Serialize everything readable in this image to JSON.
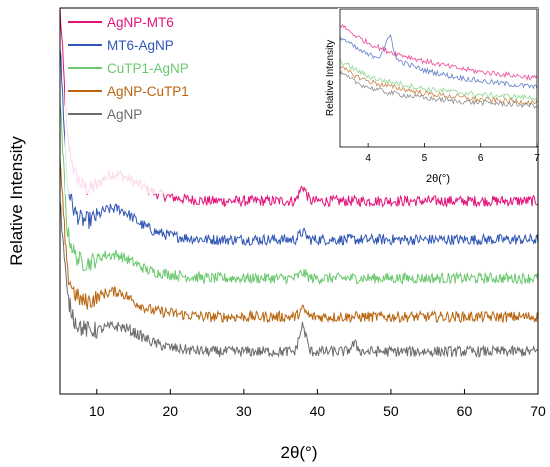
{
  "chart_data": {
    "type": "line",
    "xlabel": "2θ(°)",
    "ylabel": "Relative Intensity",
    "xlim": [
      5,
      70
    ],
    "x_ticks": [
      10,
      20,
      30,
      40,
      50,
      60,
      70
    ],
    "y_ticks_shown": false,
    "legend_position": "top-left",
    "series": [
      {
        "name": "AgNP-MT6",
        "color": "#e3137a",
        "x": [
          5,
          6,
          7,
          8,
          9,
          10,
          11,
          12,
          13,
          14,
          15,
          16,
          17,
          18,
          20,
          22,
          25,
          30,
          35,
          37,
          38,
          39,
          40,
          45,
          50,
          55,
          60,
          65,
          70
        ],
        "y": [
          100,
          66,
          57,
          54,
          53,
          54,
          56,
          57,
          57,
          56,
          55,
          54,
          53,
          52,
          51,
          50.5,
          50,
          50,
          50,
          50,
          54,
          50,
          50,
          50,
          50,
          50,
          50,
          50,
          50
        ]
      },
      {
        "name": "MT6-AgNP",
        "color": "#3055b5",
        "x": [
          5,
          6,
          7,
          8,
          9,
          10,
          11,
          12,
          13,
          14,
          15,
          16,
          17,
          18,
          20,
          22,
          25,
          30,
          35,
          37,
          38,
          39,
          40,
          45,
          50,
          55,
          60,
          65,
          70
        ],
        "y": [
          90,
          54,
          47,
          45,
          45,
          46,
          47.5,
          48,
          48,
          47,
          45.5,
          44,
          43,
          42,
          41,
          40.5,
          40,
          40,
          40,
          40,
          42,
          40,
          40,
          40,
          40,
          40,
          40,
          40,
          40
        ]
      },
      {
        "name": "CuTP1-AgNP",
        "color": "#6cc970",
        "x": [
          5,
          6,
          7,
          8,
          9,
          10,
          11,
          12,
          13,
          14,
          15,
          16,
          17,
          18,
          20,
          22,
          25,
          30,
          35,
          37,
          38,
          39,
          40,
          45,
          50,
          55,
          60,
          65,
          70
        ],
        "y": [
          75,
          42,
          36,
          34,
          34,
          35,
          36,
          36,
          36,
          35,
          34,
          33,
          32,
          31.5,
          31,
          30.5,
          30,
          30,
          30,
          30,
          31.5,
          30,
          30,
          30,
          30,
          30,
          30,
          30,
          30
        ]
      },
      {
        "name": "AgNP-CuTP1",
        "color": "#b8650f",
        "x": [
          5,
          6,
          7,
          8,
          9,
          10,
          11,
          12,
          13,
          14,
          15,
          16,
          17,
          18,
          20,
          22,
          25,
          30,
          35,
          37,
          38,
          39,
          40,
          45,
          50,
          55,
          60,
          65,
          70
        ],
        "y": [
          60,
          31,
          26,
          24,
          24,
          25,
          26,
          26.5,
          26.5,
          25.5,
          24,
          23,
          22,
          21.5,
          21,
          20.5,
          20,
          20,
          20,
          20,
          22,
          20,
          20,
          20,
          20,
          20,
          20,
          20,
          20
        ]
      },
      {
        "name": "AgNP",
        "color": "#6b6b6b",
        "x": [
          5,
          6,
          7,
          8,
          9,
          10,
          11,
          12,
          13,
          14,
          15,
          16,
          17,
          18,
          20,
          22,
          25,
          30,
          35,
          37,
          38,
          39,
          40,
          44,
          45,
          46,
          50,
          55,
          60,
          65,
          70
        ],
        "y": [
          50,
          25,
          19,
          17,
          16.5,
          16.5,
          17,
          17.5,
          17.5,
          17,
          16,
          15,
          14,
          13,
          12,
          11.5,
          11,
          11,
          11,
          11,
          18,
          11,
          11,
          11,
          13,
          11,
          11,
          11,
          11,
          11,
          11
        ]
      }
    ],
    "inset": {
      "type": "line",
      "xlabel": "2θ(°)",
      "ylabel": "Relative Intensity",
      "xlim": [
        3.5,
        7
      ],
      "x_ticks": [
        4,
        5,
        6,
        7
      ],
      "series": [
        {
          "name": "AgNP-MT6",
          "color": "#e3137a",
          "x": [
            3.5,
            3.8,
            4.0,
            4.3,
            4.6,
            5.0,
            5.5,
            6.0,
            6.5,
            7.0
          ],
          "y": [
            8.0,
            7.2,
            6.8,
            6.3,
            6.0,
            5.6,
            5.2,
            4.9,
            4.7,
            4.5
          ]
        },
        {
          "name": "MT6-AgNP",
          "color": "#3055b5",
          "x": [
            3.5,
            3.8,
            4.0,
            4.2,
            4.3,
            4.4,
            4.5,
            4.7,
            5.0,
            5.5,
            6.0,
            6.5,
            7.0
          ],
          "y": [
            7.2,
            6.4,
            6.0,
            5.9,
            6.6,
            7.3,
            5.7,
            5.4,
            5.0,
            4.6,
            4.3,
            4.1,
            3.9
          ]
        },
        {
          "name": "CuTP1-AgNP",
          "color": "#6cc970",
          "x": [
            3.5,
            3.8,
            4.0,
            4.3,
            4.6,
            5.0,
            5.5,
            6.0,
            6.5,
            7.0
          ],
          "y": [
            5.6,
            5.0,
            4.6,
            4.3,
            4.1,
            3.8,
            3.6,
            3.4,
            3.3,
            3.2
          ]
        },
        {
          "name": "AgNP-CuTP1",
          "color": "#b8650f",
          "x": [
            3.5,
            3.8,
            4.0,
            4.3,
            4.6,
            5.0,
            5.5,
            6.0,
            6.5,
            7.0
          ],
          "y": [
            5.2,
            4.6,
            4.3,
            4.0,
            3.8,
            3.5,
            3.3,
            3.1,
            3.0,
            2.9
          ]
        },
        {
          "name": "AgNP",
          "color": "#6b6b6b",
          "x": [
            3.5,
            3.8,
            4.0,
            4.3,
            4.6,
            5.0,
            5.5,
            6.0,
            6.5,
            7.0
          ],
          "y": [
            4.8,
            4.2,
            3.9,
            3.6,
            3.4,
            3.2,
            3.0,
            2.9,
            2.8,
            2.7
          ]
        }
      ]
    }
  }
}
